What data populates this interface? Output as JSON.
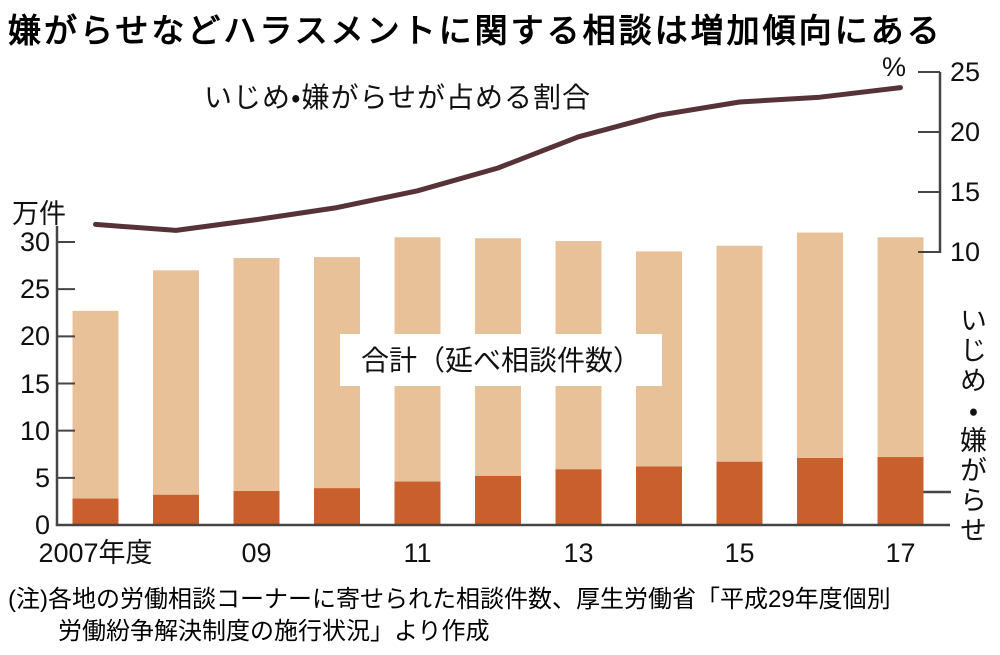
{
  "title": "嫌がらせなどハラスメントに関する相談は増加傾向にある",
  "chart_data": {
    "type": "bar+line",
    "title": "嫌がらせなどハラスメントに関する相談は増加傾向にある",
    "categories": [
      "2007",
      "2008",
      "2009",
      "2010",
      "2011",
      "2012",
      "2013",
      "2014",
      "2015",
      "2016",
      "2017"
    ],
    "x_axis": {
      "tick_labels": [
        "2007年度",
        "09",
        "11",
        "13",
        "15",
        "17"
      ],
      "tick_positions": [
        0,
        2,
        4,
        6,
        8,
        10
      ]
    },
    "left_axis": {
      "unit_label": "万件",
      "ticks": [
        30,
        25,
        20,
        15,
        10,
        5,
        0
      ],
      "range": [
        0,
        30
      ]
    },
    "right_axis": {
      "unit_label": "%",
      "ticks": [
        25,
        20,
        15,
        10
      ],
      "range": [
        10,
        25
      ]
    },
    "grid": false,
    "series": [
      {
        "name": "合計（延べ相談件数）",
        "type": "bar",
        "axis": "left",
        "unit": "万件",
        "color": "#e8c198",
        "values": [
          22.7,
          27.0,
          28.3,
          28.4,
          30.5,
          30.4,
          30.1,
          29.0,
          29.6,
          31.0,
          30.5
        ]
      },
      {
        "name": "いじめ・嫌がらせ",
        "type": "bar",
        "axis": "left",
        "unit": "万件",
        "color": "#c85f2d",
        "values": [
          2.8,
          3.2,
          3.6,
          3.9,
          4.6,
          5.2,
          5.9,
          6.2,
          6.7,
          7.1,
          7.2
        ]
      },
      {
        "name": "いじめ・嫌がらせが占める割合",
        "type": "line",
        "axis": "right",
        "unit": "%",
        "color": "#573338",
        "values": [
          12.3,
          11.8,
          12.7,
          13.7,
          15.1,
          17.0,
          19.6,
          21.4,
          22.5,
          22.9,
          23.7
        ]
      }
    ],
    "labels": {
      "line_label": "いじめ・嫌がらせが占める割合",
      "bar_label": "合計（延べ相談件数）",
      "right_side_label": "いじめ・嫌がらせ"
    },
    "colors": {
      "bar_total": "#e8c198",
      "bar_bullying": "#c85f2d",
      "line": "#573338",
      "axis": "#454545",
      "text": "#111111"
    }
  },
  "note": {
    "line1": "(注)各地の労働相談コーナーに寄せられた相談件数、厚生労働省「平成29年度個別",
    "line2": "労働紛争解決制度の施行状況」より作成"
  }
}
